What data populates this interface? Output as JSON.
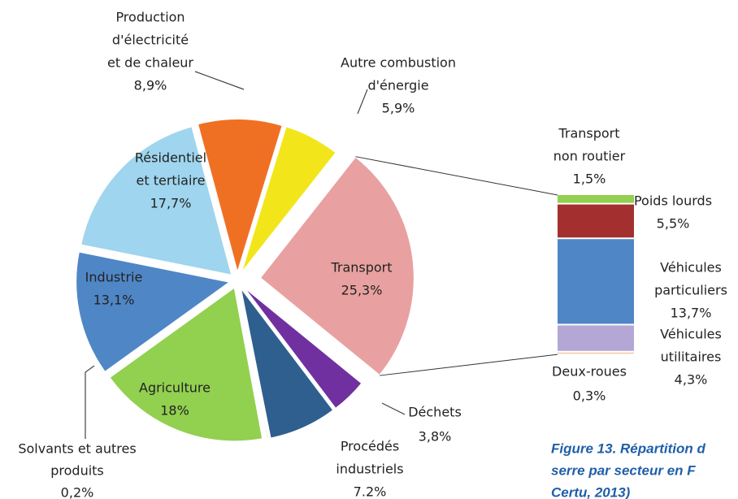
{
  "chart_data": {
    "type": "pie-of-bar",
    "categories": [
      [
        "Production",
        "d'électricité",
        "et de chaleur"
      ],
      [
        "Autre combustion",
        "d'énergie"
      ],
      [
        "Transport"
      ],
      [
        "Déchets"
      ],
      [
        "Procédés",
        "industriels"
      ],
      [
        "Solvants et autres",
        "produits"
      ],
      [
        "Agriculture"
      ],
      [
        "Industrie"
      ],
      [
        "Résidentiel",
        "et tertiaire"
      ]
    ],
    "values": [
      8.9,
      5.9,
      25.3,
      3.8,
      7.2,
      0.2,
      18,
      13.1,
      17.7
    ],
    "value_labels": [
      "8,9%",
      "5,9%",
      "25,3%",
      "3,8%",
      "7.2%",
      "0,2%",
      "18%",
      "13,1%",
      "17,7%"
    ],
    "colors": [
      "#f07023",
      "#f2e61a",
      "#e8a1a0",
      "#7030a0",
      "#2e5f8e",
      "#f6c9a4",
      "#92d050",
      "#4f86c6",
      "#9fd5ee"
    ],
    "bar": {
      "categories": [
        [
          "Transport",
          "non routier"
        ],
        [
          "Poids lourds"
        ],
        [
          "Véhicules",
          "particuliers"
        ],
        [
          "Véhicules",
          "utilitaires"
        ],
        [
          "Deux-roues"
        ]
      ],
      "values": [
        1.5,
        5.5,
        13.7,
        4.3,
        0.3
      ],
      "value_labels": [
        "1,5%",
        "5,5%",
        "13,7%",
        "4,3%",
        "0,3%"
      ],
      "colors": [
        "#92d050",
        "#a3302e",
        "#4f86c6",
        "#b4a7d6",
        "#f6c9a4"
      ]
    },
    "caption": [
      "Figure 13. Répartition d",
      "serre par secteur en F",
      "Certu, 2013)"
    ]
  }
}
